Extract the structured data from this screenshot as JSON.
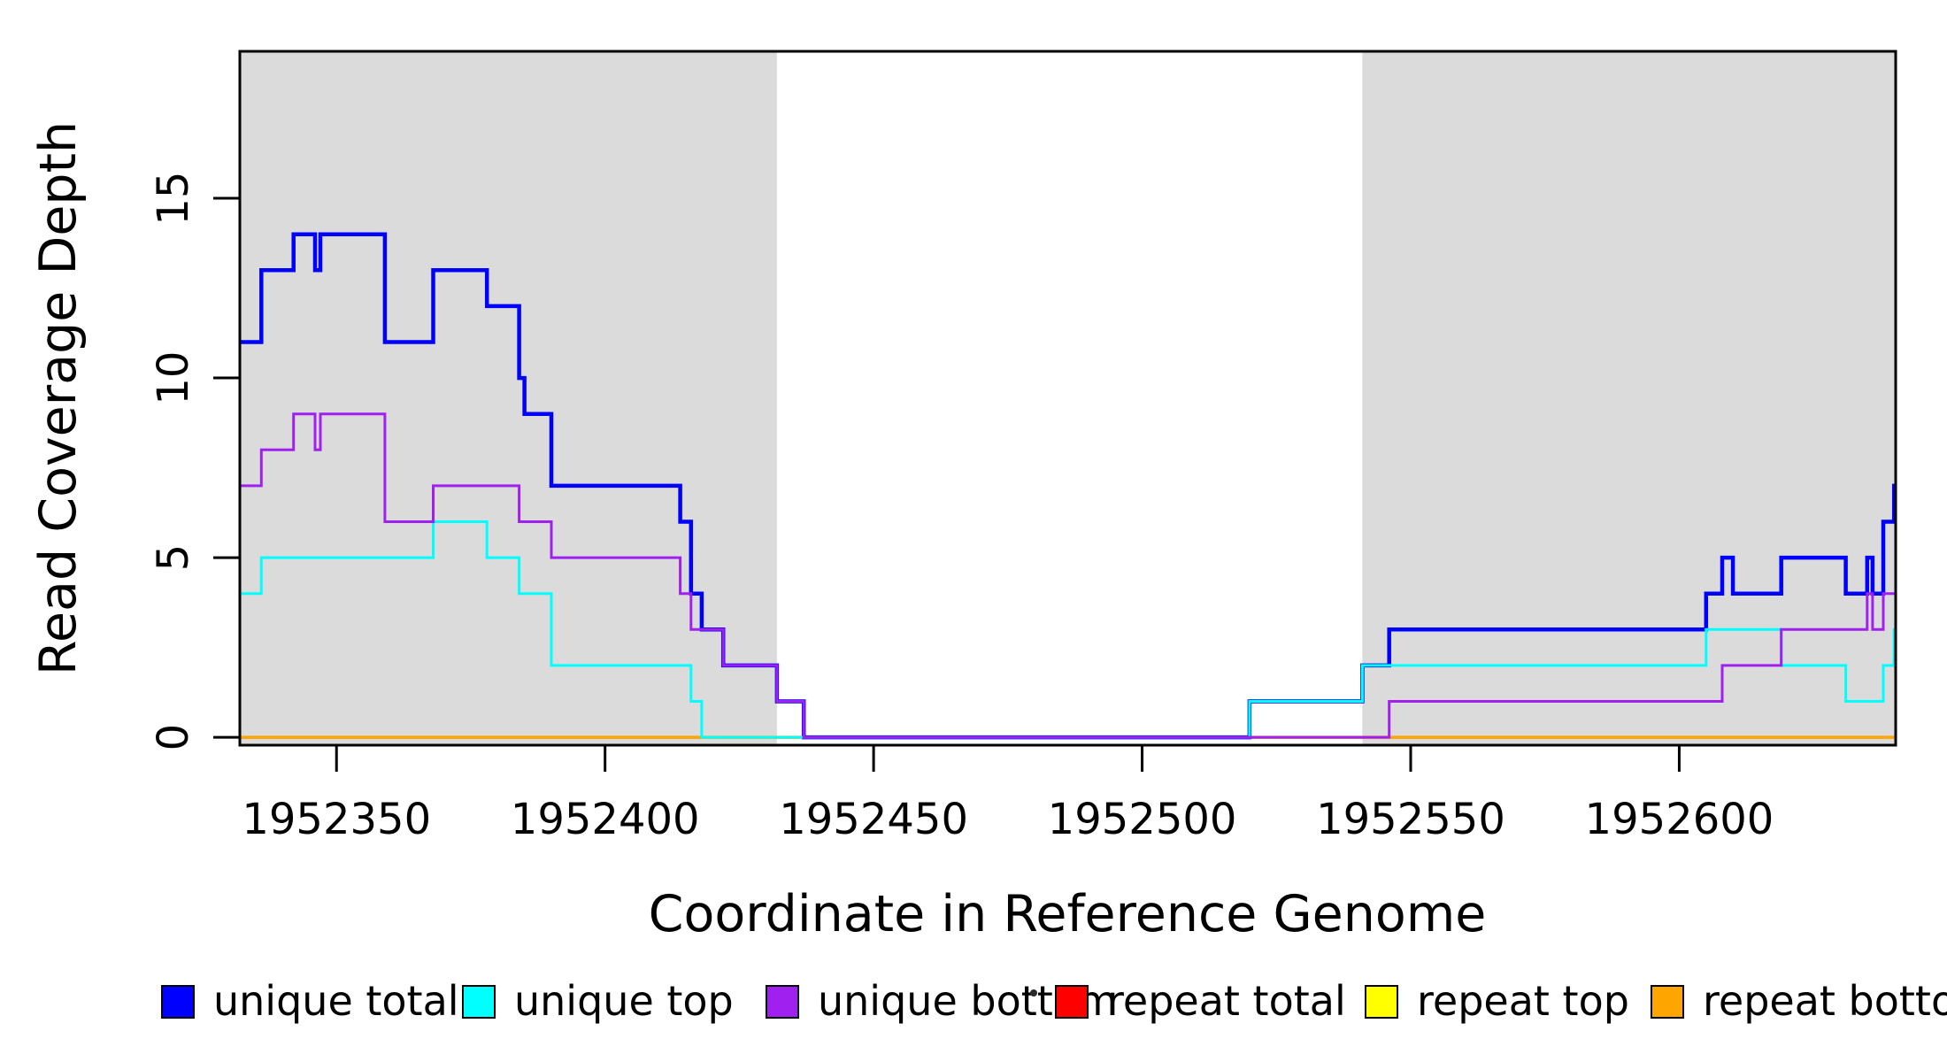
{
  "figure": {
    "background": "#FFFFFF",
    "band_color": "#DBDBDB",
    "axis_color": "#000000"
  },
  "chart_data": {
    "type": "line",
    "subtype": "step-hv",
    "title": "",
    "xlabel": "Coordinate in Reference Genome",
    "ylabel": "Read Coverage Depth",
    "xlim": [
      1952332,
      1952640.3
    ],
    "ylim": [
      -0.22,
      19.09
    ],
    "x_ticks": [
      1952350,
      1952400,
      1952450,
      1952500,
      1952550,
      1952600
    ],
    "x_tick_labels": [
      "1952350",
      "1952400",
      "1952450",
      "1952500",
      "1952550",
      "1952600"
    ],
    "y_ticks": [
      0,
      5,
      10,
      15
    ],
    "y_tick_labels": [
      "0",
      "5",
      "10",
      "15"
    ],
    "grid": false,
    "legend_position": "bottom",
    "shaded_regions": [
      {
        "name": "target-region-left",
        "from": 1952332,
        "to": 1952432
      },
      {
        "name": "target-region-right",
        "from": 1952541,
        "to": 1952640.3
      }
    ],
    "series": [
      {
        "name": "repeat total",
        "color": "#FF0000",
        "width": 3,
        "points": [
          [
            1952332,
            0
          ]
        ]
      },
      {
        "name": "repeat top",
        "color": "#FFFF00",
        "width": 3,
        "points": [
          [
            1952332,
            0
          ]
        ]
      },
      {
        "name": "repeat bottom",
        "color": "#FFA500",
        "width": 3.5,
        "points": [
          [
            1952332,
            0
          ]
        ]
      },
      {
        "name": "unique total",
        "color": "#0000FF",
        "width": 4.5,
        "points": [
          [
            1952332,
            11
          ],
          [
            1952336,
            13
          ],
          [
            1952342,
            14
          ],
          [
            1952346,
            13
          ],
          [
            1952347,
            14
          ],
          [
            1952359,
            11
          ],
          [
            1952368,
            13
          ],
          [
            1952378,
            12
          ],
          [
            1952384,
            10
          ],
          [
            1952385,
            9
          ],
          [
            1952390,
            7
          ],
          [
            1952414,
            6
          ],
          [
            1952416,
            4
          ],
          [
            1952418,
            3
          ],
          [
            1952422,
            2
          ],
          [
            1952432,
            1
          ],
          [
            1952437,
            0
          ],
          [
            1952520,
            1
          ],
          [
            1952541,
            2
          ],
          [
            1952546,
            3
          ],
          [
            1952605,
            4
          ],
          [
            1952608,
            5
          ],
          [
            1952610,
            4
          ],
          [
            1952619,
            5
          ],
          [
            1952631,
            4
          ],
          [
            1952635,
            5
          ],
          [
            1952636,
            4
          ],
          [
            1952638,
            6
          ],
          [
            1952640,
            7
          ]
        ]
      },
      {
        "name": "unique top",
        "color": "#00FFFF",
        "width": 3,
        "points": [
          [
            1952332,
            4
          ],
          [
            1952336,
            5
          ],
          [
            1952368,
            6
          ],
          [
            1952378,
            5
          ],
          [
            1952384,
            4
          ],
          [
            1952390,
            2
          ],
          [
            1952416,
            1
          ],
          [
            1952418,
            0
          ],
          [
            1952520,
            1
          ],
          [
            1952541,
            2
          ],
          [
            1952605,
            3
          ],
          [
            1952619,
            2
          ],
          [
            1952631,
            1
          ],
          [
            1952638,
            2
          ],
          [
            1952640,
            3
          ]
        ]
      },
      {
        "name": "unique bottom",
        "color": "#A020F0",
        "width": 3,
        "points": [
          [
            1952332,
            7
          ],
          [
            1952336,
            8
          ],
          [
            1952342,
            9
          ],
          [
            1952346,
            8
          ],
          [
            1952347,
            9
          ],
          [
            1952359,
            6
          ],
          [
            1952368,
            7
          ],
          [
            1952384,
            6
          ],
          [
            1952390,
            5
          ],
          [
            1952414,
            4
          ],
          [
            1952416,
            3
          ],
          [
            1952422,
            2
          ],
          [
            1952432,
            1
          ],
          [
            1952437,
            0
          ],
          [
            1952546,
            1
          ],
          [
            1952608,
            2
          ],
          [
            1952619,
            3
          ],
          [
            1952635,
            4
          ],
          [
            1952636,
            3
          ],
          [
            1952638,
            4
          ]
        ]
      }
    ],
    "legend": [
      {
        "label": "unique total",
        "color": "#0000FF"
      },
      {
        "label": "unique top",
        "color": "#00FFFF"
      },
      {
        "label": "unique bottom",
        "color": "#A020F0"
      },
      {
        "label": "repeat total",
        "color": "#FF0000"
      },
      {
        "label": "repeat top",
        "color": "#FFFF00"
      },
      {
        "label": "repeat bottom",
        "color": "#FFA500"
      }
    ]
  }
}
